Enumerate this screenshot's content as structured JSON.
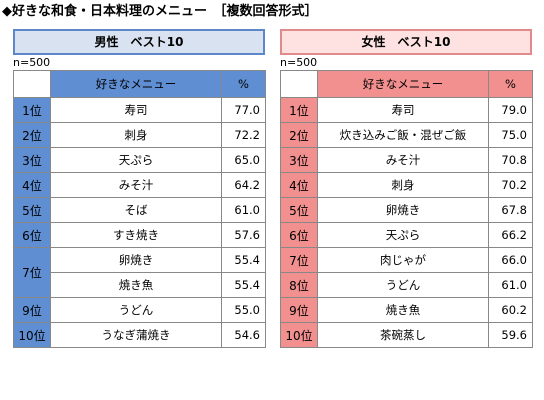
{
  "title": "◆好きな和食・日本料理のメニュー　［複数回答形式］",
  "male": {
    "title": "男性　ベスト10",
    "n": "n=500",
    "col_item": "好きなメニュー",
    "col_pct": "%",
    "rows": [
      {
        "rank": "1位",
        "item": "寿司",
        "pct": "77.0"
      },
      {
        "rank": "2位",
        "item": "刺身",
        "pct": "72.2"
      },
      {
        "rank": "3位",
        "item": "天ぷら",
        "pct": "65.0"
      },
      {
        "rank": "4位",
        "item": "みそ汁",
        "pct": "64.2"
      },
      {
        "rank": "5位",
        "item": "そば",
        "pct": "61.0"
      },
      {
        "rank": "6位",
        "item": "すき焼き",
        "pct": "57.6"
      },
      {
        "rank": "7位",
        "item": "卵焼き",
        "pct": "55.4"
      },
      {
        "rank": "",
        "item": "焼き魚",
        "pct": "55.4"
      },
      {
        "rank": "9位",
        "item": "うどん",
        "pct": "55.0"
      },
      {
        "rank": "10位",
        "item": "うなぎ蒲焼き",
        "pct": "54.6"
      }
    ]
  },
  "female": {
    "title": "女性　ベスト10",
    "n": "n=500",
    "col_item": "好きなメニュー",
    "col_pct": "%",
    "rows": [
      {
        "rank": "1位",
        "item": "寿司",
        "pct": "79.0"
      },
      {
        "rank": "2位",
        "item": "炊き込みご飯・混ぜご飯",
        "pct": "75.0"
      },
      {
        "rank": "3位",
        "item": "みそ汁",
        "pct": "70.8"
      },
      {
        "rank": "4位",
        "item": "刺身",
        "pct": "70.2"
      },
      {
        "rank": "5位",
        "item": "卵焼き",
        "pct": "67.8"
      },
      {
        "rank": "6位",
        "item": "天ぷら",
        "pct": "66.2"
      },
      {
        "rank": "7位",
        "item": "肉じゃが",
        "pct": "66.0"
      },
      {
        "rank": "8位",
        "item": "うどん",
        "pct": "61.0"
      },
      {
        "rank": "9位",
        "item": "焼き魚",
        "pct": "60.2"
      },
      {
        "rank": "10位",
        "item": "茶碗蒸し",
        "pct": "59.6"
      }
    ]
  }
}
